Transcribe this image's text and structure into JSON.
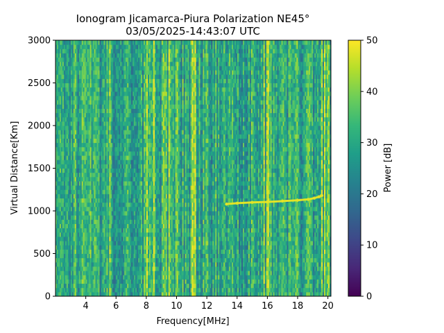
{
  "chart_data": {
    "type": "heatmap",
    "title": "Ionogram Jicamarca-Piura Polarization NE45°",
    "subtitle": "03/05/2025-14:43:07 UTC",
    "xlabel": "Frequency[MHz]",
    "ylabel": "Virtual Distance[Km]",
    "xlim": [
      2.0,
      20.2
    ],
    "ylim": [
      0,
      3000
    ],
    "x_ticks": [
      4,
      6,
      8,
      10,
      12,
      14,
      16,
      18,
      20
    ],
    "y_ticks": [
      0,
      500,
      1000,
      1500,
      2000,
      2500,
      3000
    ],
    "colorbar": {
      "label": "Power [dB]",
      "min": 0,
      "max": 50,
      "ticks": [
        0,
        10,
        20,
        30,
        40,
        50
      ],
      "colormap": "viridis"
    },
    "background_power_db": [
      22,
      38
    ],
    "strong_frequency_bands_mhz": [
      5.6,
      8.0,
      8.5,
      9.1,
      9.3,
      9.5,
      10.0,
      11.0,
      11.2,
      15.8,
      16.0,
      19.6,
      19.8,
      20.0
    ],
    "echo_trace": {
      "x_mhz": [
        13.3,
        14.0,
        15.0,
        16.0,
        17.0,
        18.0,
        18.7,
        19.1,
        19.4,
        19.6
      ],
      "y_km": [
        1080,
        1090,
        1100,
        1105,
        1115,
        1125,
        1135,
        1150,
        1165,
        1180
      ],
      "power_db": 48
    }
  },
  "colors": {
    "viridis": [
      "#440154",
      "#482878",
      "#3e4989",
      "#31688e",
      "#26828e",
      "#1f9e89",
      "#35b779",
      "#6ece58",
      "#b5de2b",
      "#fde725"
    ]
  }
}
